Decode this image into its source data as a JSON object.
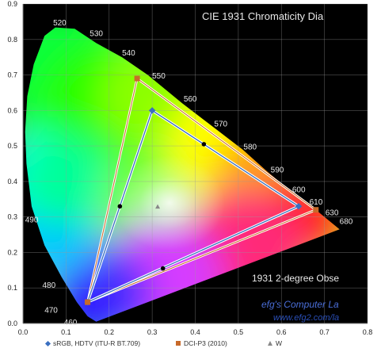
{
  "chart_data": {
    "type": "scatter",
    "title": "CIE 1931 Chromaticity Dia",
    "subtitle": "1931 2-degree Obse",
    "watermark": [
      "efg's Computer La",
      "www.efg2.com/la"
    ],
    "xlim": [
      0,
      0.8
    ],
    "ylim": [
      0,
      0.9
    ],
    "x_ticks": [
      "0.0",
      "0.1",
      "0.2",
      "0.3",
      "0.4",
      "0.5",
      "0.6",
      "0.7",
      "0.8"
    ],
    "y_ticks": [
      "0.0",
      "0.1",
      "0.2",
      "0.3",
      "0.4",
      "0.5",
      "0.6",
      "0.7",
      "0.8",
      "0.9"
    ],
    "wavelength_labels": [
      {
        "text": "520",
        "x": 0.07,
        "y": 0.84
      },
      {
        "text": "530",
        "x": 0.155,
        "y": 0.81
      },
      {
        "text": "540",
        "x": 0.23,
        "y": 0.755
      },
      {
        "text": "550",
        "x": 0.3,
        "y": 0.69
      },
      {
        "text": "560",
        "x": 0.373,
        "y": 0.625
      },
      {
        "text": "570",
        "x": 0.444,
        "y": 0.555
      },
      {
        "text": "580",
        "x": 0.512,
        "y": 0.49
      },
      {
        "text": "590",
        "x": 0.575,
        "y": 0.425
      },
      {
        "text": "600",
        "x": 0.625,
        "y": 0.37
      },
      {
        "text": "610",
        "x": 0.665,
        "y": 0.335
      },
      {
        "text": "630",
        "x": 0.702,
        "y": 0.305
      },
      {
        "text": "680",
        "x": 0.735,
        "y": 0.28
      },
      {
        "text": "490",
        "x": 0.005,
        "y": 0.285
      },
      {
        "text": "480",
        "x": 0.045,
        "y": 0.1
      },
      {
        "text": "470",
        "x": 0.05,
        "y": 0.03
      },
      {
        "text": "460",
        "x": 0.095,
        "y": -0.005
      }
    ],
    "series": [
      {
        "name": "sRGB, HDTV (ITU-R BT.709)",
        "marker": "diamond",
        "color": "#3a6fc0",
        "x": [
          0.64,
          0.3,
          0.15
        ],
        "y": [
          0.33,
          0.6,
          0.06
        ]
      },
      {
        "name": "DCI-P3 (2010)",
        "marker": "square",
        "color": "#c86a2a",
        "x": [
          0.68,
          0.265,
          0.15
        ],
        "y": [
          0.32,
          0.69,
          0.06
        ]
      },
      {
        "name": "W",
        "marker": "triangle",
        "color": "#888888",
        "x": [
          0.3127
        ],
        "y": [
          0.329
        ]
      }
    ],
    "black_points": {
      "x": [
        0.225,
        0.42,
        0.325
      ],
      "y": [
        0.33,
        0.505,
        0.155
      ]
    }
  }
}
